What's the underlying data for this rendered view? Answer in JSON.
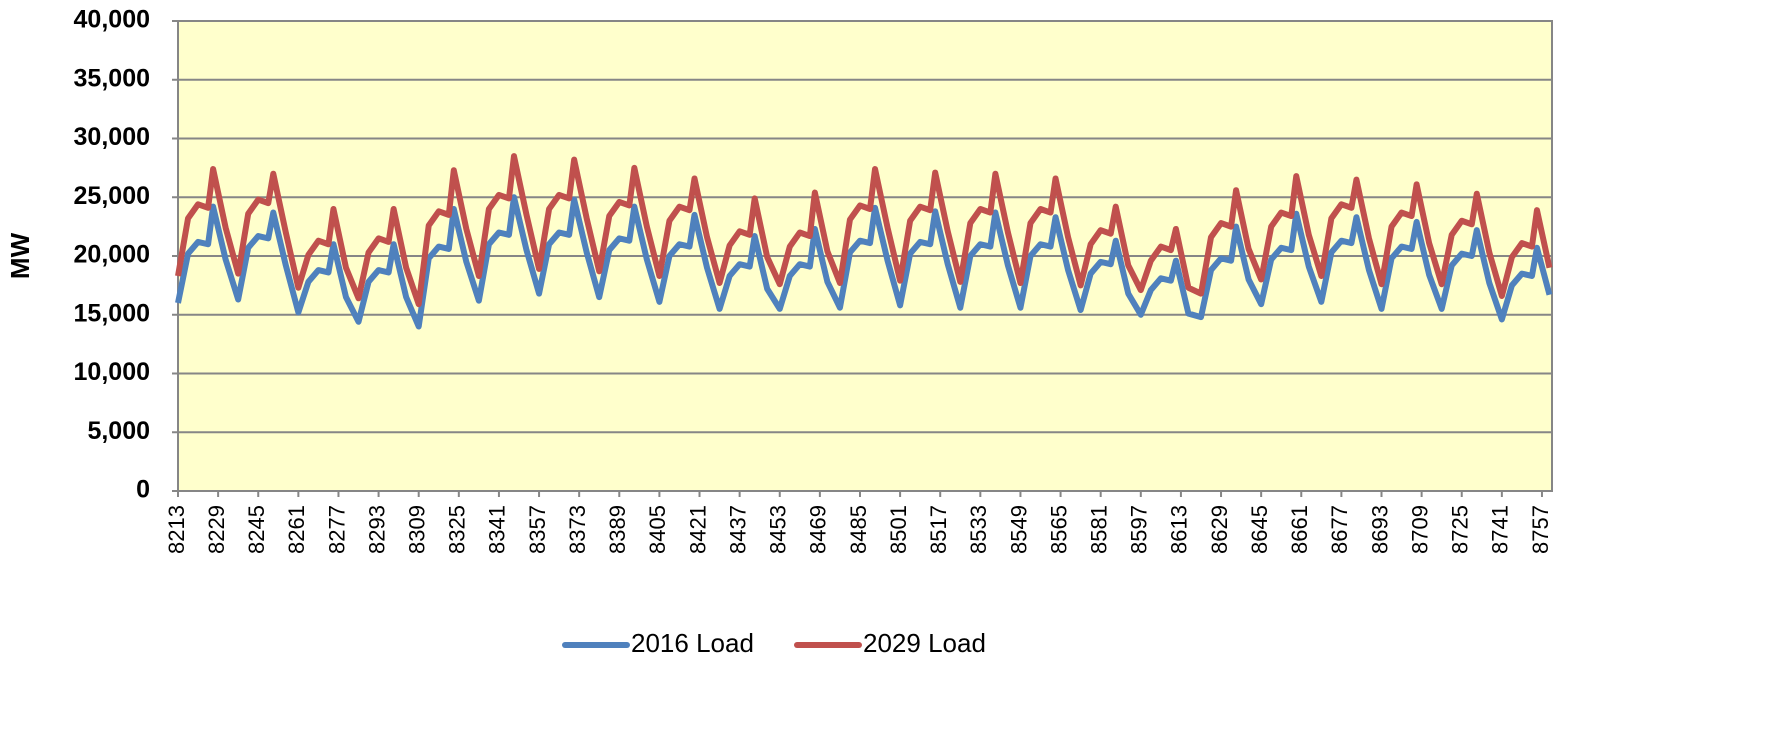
{
  "chart_data": {
    "type": "line",
    "y_label": "MW",
    "x": [
      8213,
      8217,
      8221,
      8225,
      8227,
      8232,
      8237,
      8241,
      8245,
      8249,
      8251,
      8256,
      8261,
      8265,
      8269,
      8273,
      8275,
      8280,
      8285,
      8289,
      8293,
      8297,
      8299,
      8304,
      8309,
      8313,
      8317,
      8321,
      8323,
      8328,
      8333,
      8337,
      8341,
      8345,
      8347,
      8352,
      8357,
      8361,
      8365,
      8369,
      8371,
      8376,
      8381,
      8385,
      8389,
      8393,
      8395,
      8400,
      8405,
      8409,
      8413,
      8417,
      8419,
      8424,
      8429,
      8433,
      8437,
      8441,
      8443,
      8448,
      8453,
      8457,
      8461,
      8465,
      8467,
      8472,
      8477,
      8481,
      8485,
      8489,
      8491,
      8496,
      8501,
      8505,
      8509,
      8513,
      8515,
      8520,
      8525,
      8529,
      8533,
      8537,
      8539,
      8544,
      8549,
      8553,
      8557,
      8561,
      8563,
      8568,
      8573,
      8577,
      8581,
      8585,
      8587,
      8592,
      8597,
      8601,
      8605,
      8609,
      8611,
      8616,
      8621,
      8625,
      8629,
      8633,
      8635,
      8640,
      8645,
      8649,
      8653,
      8657,
      8659,
      8664,
      8669,
      8673,
      8677,
      8681,
      8683,
      8688,
      8693,
      8697,
      8701,
      8705,
      8707,
      8712,
      8717,
      8721,
      8725,
      8729,
      8731,
      8736,
      8741,
      8745,
      8749,
      8753,
      8755,
      8760
    ],
    "series": [
      {
        "name": "2016 Load",
        "color": "#4f81bd",
        "values": [
          16000,
          20200,
          21200,
          21000,
          24200,
          19700,
          16300,
          20700,
          21700,
          21500,
          23700,
          19200,
          15200,
          17800,
          18800,
          18600,
          21000,
          16500,
          14400,
          17800,
          18800,
          18600,
          21000,
          16500,
          14000,
          19800,
          20800,
          20600,
          24000,
          19500,
          16200,
          21000,
          22000,
          21800,
          25000,
          20500,
          16800,
          21000,
          22000,
          21800,
          24800,
          20300,
          16500,
          20500,
          21500,
          21300,
          24200,
          19700,
          16100,
          20000,
          21000,
          20800,
          23500,
          19000,
          15500,
          18300,
          19300,
          19100,
          21700,
          17200,
          15500,
          18300,
          19300,
          19100,
          22300,
          17800,
          15600,
          20300,
          21300,
          21100,
          24100,
          19600,
          15800,
          20200,
          21200,
          21000,
          23800,
          19300,
          15600,
          20000,
          21000,
          20800,
          23700,
          19200,
          15600,
          20000,
          21000,
          20800,
          23300,
          18800,
          15400,
          18500,
          19500,
          19300,
          21300,
          16800,
          15000,
          17100,
          18100,
          17900,
          19600,
          15100,
          14800,
          18800,
          19800,
          19600,
          22500,
          18000,
          15900,
          19700,
          20700,
          20500,
          23600,
          19100,
          16100,
          20300,
          21300,
          21100,
          23300,
          18800,
          15500,
          19800,
          20800,
          20600,
          22900,
          18400,
          15500,
          19200,
          20200,
          20000,
          22200,
          17700,
          14600,
          17500,
          18500,
          18300,
          20700,
          16700
        ]
      },
      {
        "name": "2029 Load",
        "color": "#c0504d",
        "values": [
          18300,
          23200,
          24400,
          24100,
          27400,
          22400,
          18500,
          23600,
          24800,
          24500,
          27000,
          22000,
          17300,
          20100,
          21300,
          21000,
          24000,
          19000,
          16400,
          20300,
          21500,
          21200,
          24000,
          19000,
          15900,
          22600,
          23800,
          23500,
          27300,
          22300,
          18300,
          24000,
          25200,
          24900,
          28500,
          23500,
          18900,
          24000,
          25200,
          24900,
          28200,
          23200,
          18700,
          23400,
          24600,
          24300,
          27500,
          22500,
          18300,
          23000,
          24200,
          23900,
          26600,
          21600,
          17700,
          20900,
          22100,
          21800,
          24900,
          19900,
          17600,
          20800,
          22000,
          21700,
          25400,
          20400,
          17700,
          23100,
          24300,
          24000,
          27400,
          22400,
          17900,
          23000,
          24200,
          23900,
          27100,
          22100,
          17800,
          22800,
          24000,
          23700,
          27000,
          22000,
          17700,
          22800,
          24000,
          23700,
          26600,
          21600,
          17500,
          21000,
          22200,
          21900,
          24200,
          19200,
          17100,
          19600,
          20800,
          20500,
          22300,
          17300,
          16800,
          21600,
          22800,
          22500,
          25600,
          20600,
          18000,
          22500,
          23700,
          23400,
          26800,
          21800,
          18300,
          23200,
          24400,
          24100,
          26500,
          21500,
          17600,
          22500,
          23700,
          23400,
          26100,
          21100,
          17600,
          21800,
          23000,
          22700,
          25300,
          20300,
          16600,
          19900,
          21100,
          20800,
          23900,
          19000
        ]
      }
    ],
    "xlim": [
      8213,
      8761
    ],
    "xticks": [
      8213,
      8229,
      8245,
      8261,
      8277,
      8293,
      8309,
      8325,
      8341,
      8357,
      8373,
      8389,
      8405,
      8421,
      8437,
      8453,
      8469,
      8485,
      8501,
      8517,
      8533,
      8549,
      8565,
      8581,
      8597,
      8613,
      8629,
      8645,
      8661,
      8677,
      8693,
      8709,
      8725,
      8741,
      8757
    ],
    "ylim": [
      0,
      40000
    ],
    "yticks": [
      0,
      {
        "value": 5000,
        "label": "5,000"
      },
      {
        "value": 10000,
        "label": "10,000"
      },
      {
        "value": 15000,
        "label": "15,000"
      },
      {
        "value": 20000,
        "label": "20,000"
      },
      {
        "value": 25000,
        "label": "25,000"
      },
      {
        "value": 30000,
        "label": "30,000"
      },
      {
        "value": 35000,
        "label": "35,000"
      },
      {
        "value": 40000,
        "label": "40,000"
      }
    ],
    "grid": true,
    "background": "#ffffcc",
    "legend": "bottom"
  }
}
